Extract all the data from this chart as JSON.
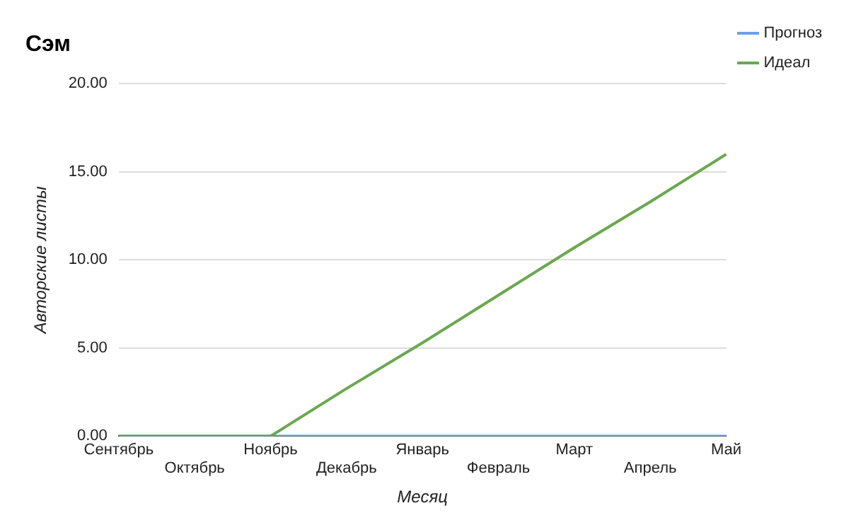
{
  "chart_data": {
    "type": "line",
    "title": "Сэм",
    "xlabel": "Месяц",
    "ylabel": "Авторские листы",
    "categories": [
      "Сентябрь",
      "Октябрь",
      "Ноябрь",
      "Декабрь",
      "Январь",
      "Февраль",
      "Март",
      "Апрель",
      "Май"
    ],
    "series": [
      {
        "name": "Прогноз",
        "color": "#6d9eeb",
        "values": [
          0,
          0,
          0,
          0,
          0,
          0,
          0,
          0,
          0
        ]
      },
      {
        "name": "Идеал",
        "color": "#6aa84f",
        "values": [
          0,
          0,
          0,
          2.7,
          5.3,
          8,
          10.7,
          13.3,
          16
        ]
      }
    ],
    "ylim": [
      0,
      20
    ],
    "yticks": [
      {
        "value": 0,
        "label": "0.00"
      },
      {
        "value": 5,
        "label": "5.00"
      },
      {
        "value": 10,
        "label": "10.00"
      },
      {
        "value": 15,
        "label": "15.00"
      },
      {
        "value": 20,
        "label": "20.00"
      }
    ],
    "grid": "y",
    "legend": "top right",
    "marker": "none",
    "line_style": "solid"
  }
}
